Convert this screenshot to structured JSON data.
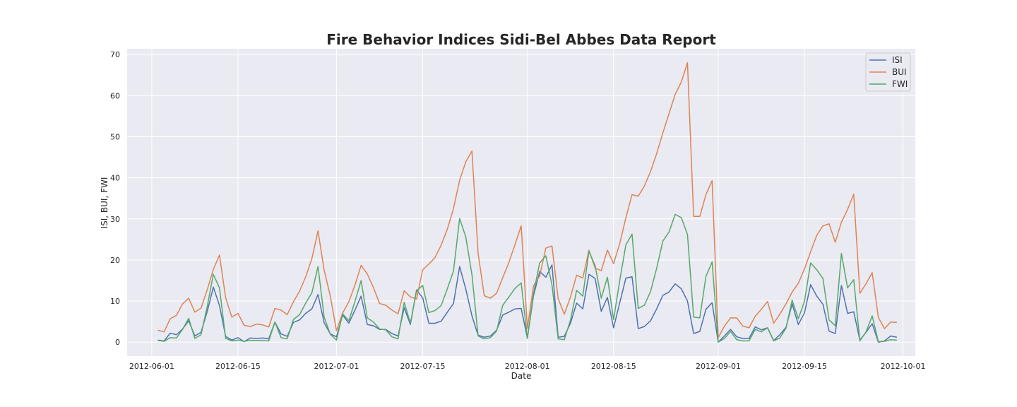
{
  "chart_data": {
    "type": "line",
    "title": "Fire Behavior Indices Sidi-Bel Abbes Data Report",
    "xlabel": "Date",
    "ylabel": "ISI, BUI, FWI",
    "xlim": [
      "2012-05-28",
      "2012-10-03"
    ],
    "ylim": [
      -3.4,
      71.4
    ],
    "grid": true,
    "legend_position": "top-right",
    "x_ticks": [
      "2012-06-01",
      "2012-06-15",
      "2012-07-01",
      "2012-07-15",
      "2012-08-01",
      "2012-08-15",
      "2012-09-01",
      "2012-09-15",
      "2012-10-01"
    ],
    "y_ticks": [
      0,
      10,
      20,
      30,
      40,
      50,
      60,
      70
    ],
    "start_date": "2012-06-02",
    "series": [
      {
        "name": "ISI",
        "color": "#4c72b0",
        "values": [
          0.5,
          0.3,
          2.2,
          1.8,
          3.2,
          5.2,
          1.5,
          2.4,
          7.4,
          13.4,
          8.9,
          1.4,
          0.5,
          1.1,
          0.1,
          1.0,
          0.9,
          1.0,
          0.8,
          4.9,
          2.0,
          1.4,
          4.8,
          5.4,
          7.0,
          8.1,
          11.6,
          4.7,
          2.0,
          1.3,
          6.6,
          4.6,
          7.8,
          11.2,
          4.3,
          4.0,
          3.1,
          3.1,
          2.1,
          1.5,
          8.4,
          4.3,
          12.7,
          10.8,
          4.6,
          4.6,
          5.1,
          7.3,
          9.4,
          18.4,
          12.9,
          6.4,
          1.7,
          1.2,
          1.5,
          2.9,
          6.6,
          7.3,
          8.1,
          8.2,
          1.0,
          11.3,
          17.2,
          15.8,
          18.8,
          1.2,
          1.4,
          4.6,
          9.5,
          8.1,
          16.5,
          15.5,
          7.5,
          10.9,
          3.5,
          9.6,
          15.6,
          15.9,
          3.3,
          3.8,
          5.2,
          8.1,
          11.4,
          12.2,
          14.2,
          13.0,
          10.0,
          2.1,
          2.6,
          8.0,
          9.6,
          0.0,
          1.5,
          3.1,
          1.3,
          0.9,
          0.9,
          3.7,
          3.0,
          3.5,
          0.4,
          1.8,
          3.6,
          9.3,
          4.3,
          7.1,
          14.0,
          11.2,
          9.2,
          2.7,
          2.1,
          13.8,
          7.0,
          7.4,
          0.5,
          2.4,
          4.5,
          0.0,
          0.3,
          1.5,
          1.2
        ]
      },
      {
        "name": "BUI",
        "color": "#dd8452",
        "values": [
          2.9,
          2.5,
          5.7,
          6.5,
          9.3,
          10.7,
          7.3,
          8.3,
          12.7,
          17.7,
          21.2,
          10.8,
          6.1,
          7.0,
          4.1,
          3.8,
          4.4,
          4.2,
          3.7,
          8.2,
          7.8,
          6.7,
          9.8,
          12.4,
          15.9,
          20.3,
          27.1,
          17.5,
          11.2,
          2.8,
          7.1,
          9.8,
          13.9,
          18.7,
          16.6,
          13.3,
          9.4,
          9.0,
          7.8,
          6.9,
          12.5,
          11.0,
          10.5,
          17.6,
          19.0,
          20.6,
          23.6,
          27.5,
          32.5,
          39.4,
          43.9,
          46.5,
          21.6,
          11.3,
          10.7,
          11.9,
          15.7,
          19.4,
          23.8,
          28.3,
          3.4,
          13.7,
          16.1,
          22.9,
          23.4,
          10.6,
          6.8,
          11.0,
          16.3,
          15.6,
          22.4,
          18.0,
          17.4,
          22.4,
          19.1,
          24.0,
          30.3,
          35.9,
          35.5,
          38.0,
          41.5,
          45.9,
          50.9,
          55.6,
          60.3,
          63.3,
          68.0,
          30.6,
          30.6,
          35.9,
          39.3,
          1.1,
          3.9,
          5.9,
          5.9,
          3.9,
          3.5,
          6.3,
          8.0,
          9.9,
          4.6,
          6.8,
          9.3,
          12.2,
          14.3,
          17.8,
          22.0,
          26.0,
          28.3,
          28.8,
          24.3,
          29.2,
          32.3,
          36.0,
          11.9,
          14.2,
          16.9,
          6.0,
          3.3,
          4.9,
          4.8
        ]
      },
      {
        "name": "FWI",
        "color": "#55a868",
        "values": [
          0.4,
          0.2,
          1.1,
          1.0,
          3.1,
          5.8,
          0.9,
          1.8,
          8.6,
          16.5,
          13.2,
          0.9,
          0.3,
          0.5,
          0.2,
          0.4,
          0.4,
          0.4,
          0.3,
          4.9,
          1.1,
          0.8,
          5.5,
          6.7,
          9.5,
          12.0,
          18.4,
          6.1,
          1.9,
          0.5,
          6.9,
          5.2,
          9.9,
          15.0,
          5.9,
          4.9,
          3.2,
          3.0,
          1.3,
          0.8,
          9.7,
          4.6,
          12.5,
          13.8,
          7.2,
          7.7,
          8.9,
          13.0,
          17.3,
          30.1,
          25.6,
          16.4,
          1.5,
          0.8,
          1.1,
          2.7,
          9.0,
          11.0,
          13.1,
          14.4,
          0.9,
          11.9,
          19.3,
          21.0,
          13.9,
          0.8,
          0.6,
          5.4,
          12.6,
          11.2,
          22.1,
          18.6,
          10.7,
          15.8,
          5.5,
          15.0,
          23.7,
          26.3,
          8.2,
          9.0,
          12.3,
          18.0,
          24.6,
          26.8,
          31.1,
          30.3,
          26.2,
          6.1,
          5.9,
          16.0,
          19.5,
          0.0,
          0.9,
          2.6,
          0.6,
          0.3,
          0.3,
          3.1,
          2.5,
          3.5,
          0.3,
          1.0,
          3.4,
          10.2,
          5.7,
          9.9,
          19.3,
          17.6,
          15.5,
          5.4,
          4.0,
          21.6,
          13.2,
          15.2,
          0.3,
          2.5,
          6.4,
          0.1,
          0.2,
          0.6,
          0.5
        ]
      }
    ]
  }
}
